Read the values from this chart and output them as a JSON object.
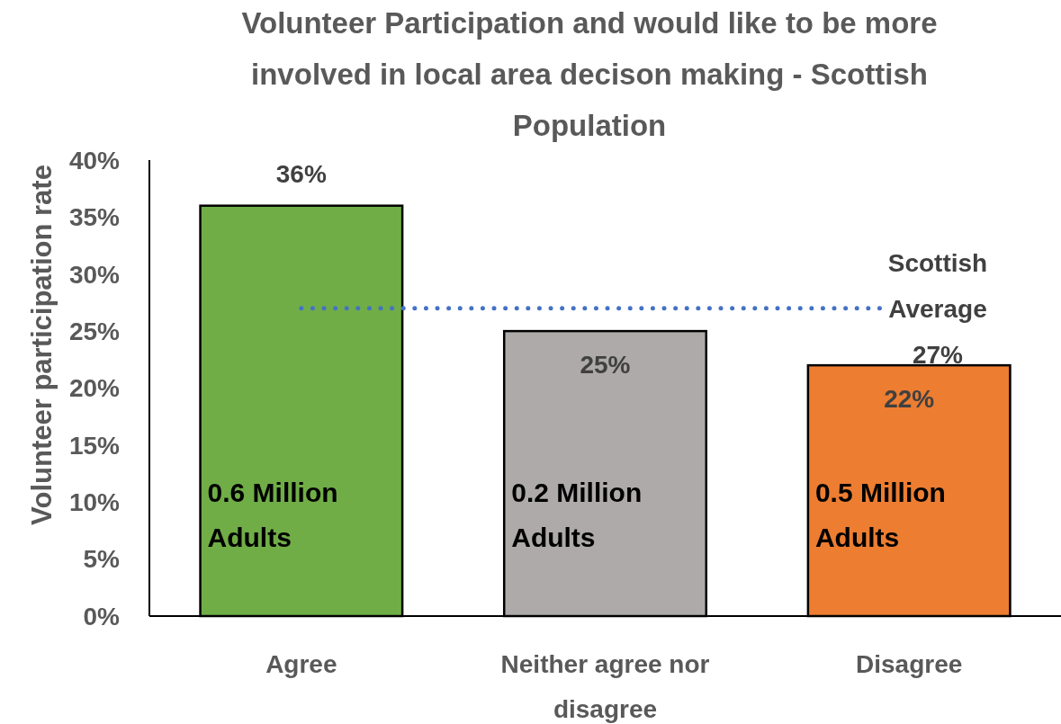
{
  "chart_data": {
    "type": "bar",
    "title": "Volunteer Participation and would like to be more involved in local area decison making - Scottish Population",
    "ylabel": "Volunteer participation rate",
    "categories": [
      "Agree",
      "Neither agree nor disagree",
      "Disagree"
    ],
    "values": [
      36,
      25,
      22
    ],
    "colors": [
      "#70ad47",
      "#aeaaaa",
      "#ed7d31"
    ],
    "value_labels": [
      "36%",
      "25%",
      "22%"
    ],
    "ylim": [
      0,
      40
    ],
    "yticks": [
      {
        "value": 0,
        "label": "0%"
      },
      {
        "value": 5,
        "label": "5%"
      },
      {
        "value": 10,
        "label": "10%"
      },
      {
        "value": 15,
        "label": "15%"
      },
      {
        "value": 20,
        "label": "20%"
      },
      {
        "value": 25,
        "label": "25%"
      },
      {
        "value": 30,
        "label": "30%"
      },
      {
        "value": 35,
        "label": "35%"
      },
      {
        "value": 40,
        "label": "40%"
      }
    ],
    "ref_lines": [
      {
        "axis": "y",
        "value": 27,
        "label": "Scottish Average 27%",
        "color": "#4472c4",
        "line_style": "dotted"
      }
    ],
    "annotations": [
      "0.6 Million Adults",
      "0.2 Million Adults",
      "0.5 Million Adults"
    ]
  }
}
